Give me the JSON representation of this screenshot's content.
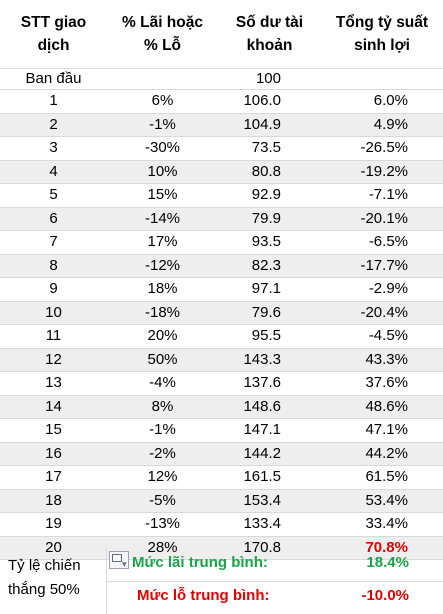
{
  "headers": {
    "col1_line1": "STT giao",
    "col1_line2": "dịch",
    "col2_line1": "% Lãi hoặc",
    "col2_line2": "% Lỗ",
    "col3_line1": "Số dư tài",
    "col3_line2": "khoản",
    "col4_line1": "Tổng tỷ suất",
    "col4_line2": "sinh lợi"
  },
  "start": {
    "label": "Ban đầu",
    "balance": "100"
  },
  "rows": [
    {
      "n": "1",
      "pct": "6%",
      "bal": "106.0",
      "ret": "6.0%"
    },
    {
      "n": "2",
      "pct": "-1%",
      "bal": "104.9",
      "ret": "4.9%"
    },
    {
      "n": "3",
      "pct": "-30%",
      "bal": "73.5",
      "ret": "-26.5%"
    },
    {
      "n": "4",
      "pct": "10%",
      "bal": "80.8",
      "ret": "-19.2%"
    },
    {
      "n": "5",
      "pct": "15%",
      "bal": "92.9",
      "ret": "-7.1%"
    },
    {
      "n": "6",
      "pct": "-14%",
      "bal": "79.9",
      "ret": "-20.1%"
    },
    {
      "n": "7",
      "pct": "17%",
      "bal": "93.5",
      "ret": "-6.5%"
    },
    {
      "n": "8",
      "pct": "-12%",
      "bal": "82.3",
      "ret": "-17.7%"
    },
    {
      "n": "9",
      "pct": "18%",
      "bal": "97.1",
      "ret": "-2.9%"
    },
    {
      "n": "10",
      "pct": "-18%",
      "bal": "79.6",
      "ret": "-20.4%"
    },
    {
      "n": "11",
      "pct": "20%",
      "bal": "95.5",
      "ret": "-4.5%"
    },
    {
      "n": "12",
      "pct": "50%",
      "bal": "143.3",
      "ret": "43.3%"
    },
    {
      "n": "13",
      "pct": "-4%",
      "bal": "137.6",
      "ret": "37.6%"
    },
    {
      "n": "14",
      "pct": "8%",
      "bal": "148.6",
      "ret": "48.6%"
    },
    {
      "n": "15",
      "pct": "-1%",
      "bal": "147.1",
      "ret": "47.1%"
    },
    {
      "n": "16",
      "pct": "-2%",
      "bal": "144.2",
      "ret": "44.2%"
    },
    {
      "n": "17",
      "pct": "12%",
      "bal": "161.5",
      "ret": "61.5%"
    },
    {
      "n": "18",
      "pct": "-5%",
      "bal": "153.4",
      "ret": "53.4%"
    },
    {
      "n": "19",
      "pct": "-13%",
      "bal": "133.4",
      "ret": "33.4%"
    },
    {
      "n": "20",
      "pct": "28%",
      "bal": "170.8",
      "ret": "70.8%"
    }
  ],
  "footer": {
    "win_rate_line1": "Tỷ lệ chiến",
    "win_rate_line2": "thắng 50%",
    "avg_profit_label": "Mức lãi trung bình:",
    "avg_profit_value": "18.4%",
    "avg_loss_label": "Mức lỗ trung bình:",
    "avg_loss_value": "-10.0%"
  },
  "colors": {
    "profit": "#1aa34a",
    "loss": "#e00000",
    "stripe": "#eeeeee"
  },
  "icons": {
    "paste_options": "paste-options-icon"
  }
}
